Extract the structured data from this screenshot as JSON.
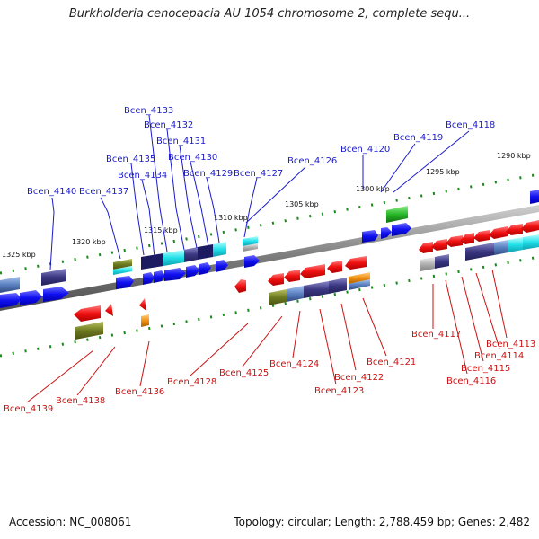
{
  "title": "Burkholderia cenocepacia AU 1054 chromosome 2, complete sequ...",
  "footer": {
    "accession": "Accession: NC_008061",
    "topology": "Topology: circular; Length: 2,788,459 bp; Genes: 2,482"
  },
  "scale_labels": [
    "1325 kbp",
    "1320 kbp",
    "1315 kbp",
    "1310 kbp",
    "1305 kbp",
    "1300 kbp",
    "1295 kbp",
    "1290 kbp"
  ],
  "genes_forward": [
    "Bcen_4133",
    "Bcen_4132",
    "Bcen_4131",
    "Bcen_4130",
    "Bcen_4135",
    "Bcen_4134",
    "Bcen_4129",
    "Bcen_4127",
    "Bcen_4126",
    "Bcen_4140",
    "Bcen_4137",
    "Bcen_4120",
    "Bcen_4119",
    "Bcen_4118"
  ],
  "genes_reverse": [
    "Bcen_4139",
    "Bcen_4138",
    "Bcen_4136",
    "Bcen_4128",
    "Bcen_4125",
    "Bcen_4124",
    "Bcen_4123",
    "Bcen_4122",
    "Bcen_4121",
    "Bcen_4117",
    "Bcen_4116",
    "Bcen_4115",
    "Bcen_4114",
    "Bcen_4113"
  ],
  "colors": {
    "forward_label": "#1a1acc",
    "reverse_label": "#cc1111",
    "forward_gene": "#0a0ae6",
    "reverse_gene": "#e61a1a",
    "backbone": "#808080",
    "tick": "#1a8a1a"
  }
}
